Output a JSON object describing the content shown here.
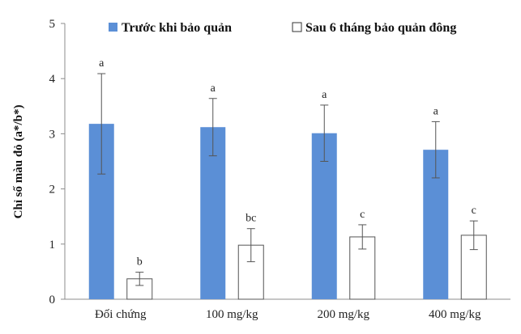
{
  "chart_data": {
    "type": "bar",
    "ylabel": "Chỉ số màu đỏ (a*/b*)",
    "ylim": [
      0,
      5
    ],
    "yticks": [
      "0",
      "1",
      "2",
      "3",
      "4",
      "5"
    ],
    "categories": [
      "Đối chứng",
      "100 mg/kg",
      "200 mg/kg",
      "400 mg/kg"
    ],
    "grid": false,
    "legend_position": "top",
    "series": [
      {
        "name": "Trước khi bảo quản",
        "color": "#5b8fd6",
        "values": [
          3.18,
          3.12,
          3.01,
          2.71
        ],
        "errors": [
          0.91,
          0.52,
          0.51,
          0.51
        ],
        "letters": [
          "a",
          "a",
          "a",
          "a"
        ]
      },
      {
        "name": "Sau 6 tháng bảo quản đông",
        "color": "#ffffff",
        "values": [
          0.37,
          0.98,
          1.13,
          1.16
        ],
        "errors": [
          0.12,
          0.3,
          0.22,
          0.26
        ],
        "letters": [
          "b",
          "bc",
          "c",
          "c"
        ]
      }
    ]
  }
}
